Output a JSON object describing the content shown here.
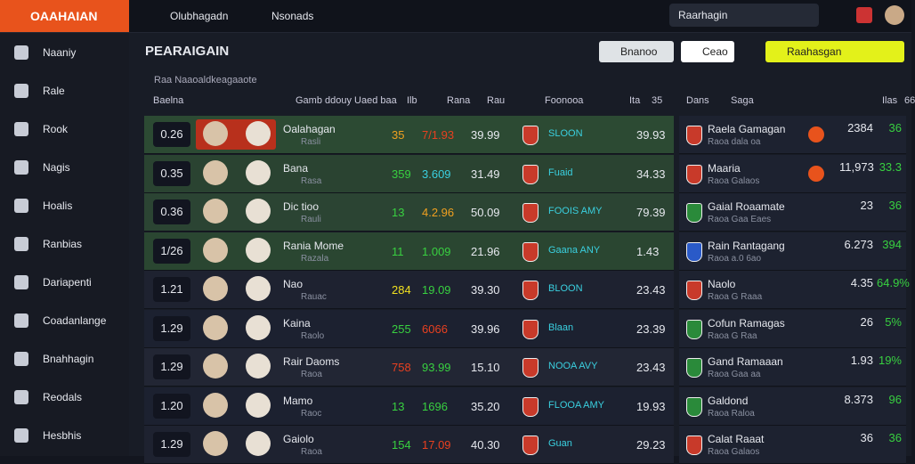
{
  "header": {
    "brand": "OAAHAIAN",
    "nav": [
      "Olubhagadn",
      "Nsonads"
    ],
    "search": "Raarhagin"
  },
  "sidebar": [
    "Naaniy",
    "Rale",
    "Rook",
    "Nagis",
    "Hoalis",
    "Ranbias",
    "Dariapenti",
    "Coadanlange",
    "Bnahhagin",
    "Reodals",
    "Hesbhis"
  ],
  "main": {
    "title": "PEARAIGAIN",
    "subtitle": "Raa Naaoaldkeagaaote",
    "filters": [
      "Bnanoo",
      "Ceao",
      "Raahasgan"
    ],
    "columns": [
      "Baelna",
      "Gamb ddouy Uaed baa",
      "Ilb",
      "Rana",
      "Rau",
      "Foonooa",
      "Ita",
      "35"
    ],
    "rows": [
      {
        "time": "0.26",
        "name": "Oalahagan",
        "sub": "Rasli",
        "v1": "35",
        "v2": "7/1.93",
        "v3": "39.99",
        "team": "SLOON",
        "v4": "39.93"
      },
      {
        "time": "0.35",
        "name": "Bana",
        "sub": "Rasa",
        "v1": "359",
        "v2": "3.609",
        "v3": "31.49",
        "team": "Fuaid",
        "v4": "34.33"
      },
      {
        "time": "0.36",
        "name": "Dic tioo",
        "sub": "Rauli",
        "v1": "13",
        "v2": "4.2.96",
        "v3": "50.09",
        "team": "FOOIS AMY",
        "v4": "79.39"
      },
      {
        "time": "1/26",
        "name": "Rania Mome",
        "sub": "Razala",
        "v1": "11",
        "v2": "1.009",
        "v3": "21.96",
        "team": "Gaana ANY",
        "v4": "1.43"
      },
      {
        "time": "1.21",
        "name": "Nao",
        "sub": "Rauac",
        "v1": "284",
        "v2": "19.09",
        "v3": "39.30",
        "team": "BLOON",
        "v4": "23.43"
      },
      {
        "time": "1.29",
        "name": "Kaina",
        "sub": "Raolo",
        "v1": "255",
        "v2": "6066",
        "v3": "39.96",
        "team": "Blaan",
        "v4": "23.39"
      },
      {
        "time": "1.29",
        "name": "Rair Daoms",
        "sub": "Raoa",
        "v1": "758",
        "v2": "93.99",
        "v3": "15.10",
        "team": "NOOA AVY",
        "v4": "23.43"
      },
      {
        "time": "1.20",
        "name": "Mamo",
        "sub": "Raoc",
        "v1": "13",
        "v2": "1696",
        "v3": "35.20",
        "team": "FLOOA AMY",
        "v4": "19.93"
      },
      {
        "time": "1.29",
        "name": "Gaiolo",
        "sub": "Raoa",
        "v1": "154",
        "v2": "17.09",
        "v3": "40.30",
        "team": "Guan",
        "v4": "29.23"
      }
    ]
  },
  "panel": {
    "columns": [
      "Dans",
      "Saga",
      "Ilas",
      "66"
    ],
    "rows": [
      {
        "name": "Raela Gamagan",
        "sub": "Raoa dala oa",
        "v1": "2384",
        "v2": "36"
      },
      {
        "name": "Maaria",
        "sub": "Raoa Galaos",
        "v1": "11,973",
        "v2": "33.3"
      },
      {
        "name": "Gaial Roaamate",
        "sub": "Raoa Gaa Eaes",
        "v1": "23",
        "v2": "36"
      },
      {
        "name": "Rain Rantagang",
        "sub": "Raoa a.0 6ao",
        "v1": "6.273",
        "v2": "394"
      },
      {
        "name": "Naolo",
        "sub": "Raoa G Raaa",
        "v1": "4.35",
        "v2": "64.9%"
      },
      {
        "name": "Cofun Ramagas",
        "sub": "Raoa G Raa",
        "v1": "26",
        "v2": "5%"
      },
      {
        "name": "Gand Ramaaan",
        "sub": "Raoa Gaa aa",
        "v1": "1.93",
        "v2": "19%"
      },
      {
        "name": "Galdond",
        "sub": "Raoa Raloa",
        "v1": "8.373",
        "v2": "96"
      },
      {
        "name": "Calat Raaat",
        "sub": "Raoa Galaos",
        "v1": "36",
        "v2": "36"
      }
    ]
  }
}
